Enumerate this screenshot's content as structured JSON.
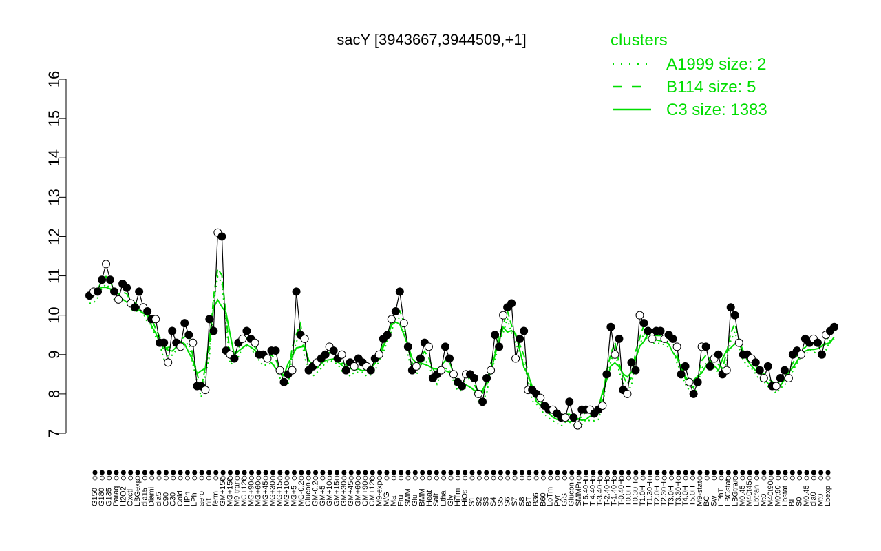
{
  "chart_data": {
    "type": "line",
    "title": "sacY [3943667,3944509,+1]",
    "xlabel": "",
    "ylabel": "",
    "ylim": [
      7,
      16
    ],
    "yticks": [
      7,
      8,
      9,
      10,
      11,
      12,
      13,
      14,
      15,
      16
    ],
    "grid": false,
    "colors": {
      "accent": "#00dd00",
      "axis": "#000000",
      "point_fill_open": "#ffffff",
      "point_fill_solid": "#000000"
    },
    "x_tick_labels": [
      "G150",
      "G180",
      "G135",
      "Paraq",
      "H2O2",
      "Oxctl",
      "LBGexp",
      "dia15",
      "Diami",
      "dia5",
      "C90",
      "C30",
      "Cold",
      "HPh",
      "LPh",
      "aero",
      "nit",
      "ferm",
      "GM+150",
      "MG+150",
      "M9-tran",
      "MG+120",
      "MG+90",
      "MG+60",
      "MG+45",
      "MG+30",
      "MG+15",
      "MG+10",
      "MG+5",
      "MG-0.2",
      "Glucon",
      "GM-0.2",
      "GM+5",
      "GM+10",
      "GM+15",
      "GM+30",
      "GM+45",
      "GM+60",
      "GM+90",
      "GM+120",
      "M9-exp",
      "M/G",
      "Mal",
      "Fru",
      "SMM",
      "Glu",
      "BMM",
      "Heat",
      "Salt",
      "Etha",
      "Gly",
      "HiTm",
      "HiOs",
      "S1",
      "S2",
      "S3",
      "S4",
      "S5",
      "S6",
      "S7",
      "S8",
      "BT",
      "B36",
      "B60",
      "LoTm",
      "Pyr",
      "G/S",
      "Glucon",
      "SMMPr",
      "T-5.40H",
      "T-4.40H",
      "T-3.40H",
      "T-2.40H",
      "T-1.40H",
      "T-0.40H",
      "T0.0H",
      "T0.30H",
      "T1.0H",
      "T1.30H",
      "T2.0H",
      "T2.30H",
      "T3.0H",
      "T3.30H",
      "T4.0H",
      "T5.0H",
      "M9-stat",
      "BC",
      "Sw",
      "LPhT",
      "LBGstat",
      "LBGtran",
      "M0t45",
      "M40t45",
      "Lbtran",
      "Mt0",
      "M40t90",
      "M0t90",
      "Lbstat",
      "BI",
      "S0",
      "M0t45",
      "dia0",
      "Mt0",
      "Lbexp"
    ],
    "series": [
      {
        "name": "A1999 size: 2",
        "style": "dotted"
      },
      {
        "name": "B114 size: 5",
        "style": "dashed"
      },
      {
        "name": "C3 size: 1383",
        "style": "solid"
      }
    ],
    "legend": {
      "title": "clusters",
      "position": "top-right"
    },
    "points": [
      [
        1,
        10.5
      ],
      [
        2,
        10.6
      ],
      [
        3,
        10.6
      ],
      [
        4,
        10.9
      ],
      [
        5,
        11.3
      ],
      [
        6,
        10.9
      ],
      [
        7,
        10.6
      ],
      [
        8,
        10.4
      ],
      [
        9,
        10.8
      ],
      [
        10,
        10.7
      ],
      [
        11,
        10.3
      ],
      [
        12,
        10.2
      ],
      [
        13,
        10.6
      ],
      [
        14,
        10.2
      ],
      [
        15,
        10.1
      ],
      [
        16,
        9.9
      ],
      [
        17,
        9.9
      ],
      [
        18,
        9.3
      ],
      [
        19,
        9.3
      ],
      [
        20,
        8.8
      ],
      [
        21,
        9.6
      ],
      [
        22,
        9.3
      ],
      [
        23,
        9.2
      ],
      [
        24,
        9.8
      ],
      [
        25,
        9.5
      ],
      [
        26,
        9.3
      ],
      [
        27,
        8.2
      ],
      [
        28,
        8.2
      ],
      [
        29,
        8.1
      ],
      [
        30,
        9.9
      ],
      [
        31,
        9.6
      ],
      [
        32,
        12.1
      ],
      [
        33,
        12.0
      ],
      [
        34,
        9.1
      ],
      [
        35,
        9.0
      ],
      [
        36,
        8.9
      ],
      [
        37,
        9.3
      ],
      [
        38,
        9.4
      ],
      [
        39,
        9.6
      ],
      [
        40,
        9.4
      ],
      [
        41,
        9.3
      ],
      [
        42,
        9.0
      ],
      [
        43,
        9.0
      ],
      [
        44,
        8.9
      ],
      [
        45,
        9.1
      ],
      [
        46,
        9.1
      ],
      [
        47,
        8.6
      ],
      [
        48,
        8.3
      ],
      [
        49,
        8.5
      ],
      [
        50,
        8.6
      ],
      [
        51,
        10.6
      ],
      [
        52,
        9.5
      ],
      [
        53,
        9.4
      ],
      [
        54,
        8.6
      ],
      [
        55,
        8.7
      ],
      [
        56,
        8.8
      ],
      [
        57,
        8.9
      ],
      [
        58,
        9.0
      ],
      [
        59,
        9.2
      ],
      [
        60,
        9.1
      ],
      [
        61,
        8.9
      ],
      [
        62,
        9.0
      ],
      [
        63,
        8.6
      ],
      [
        64,
        8.8
      ],
      [
        65,
        8.7
      ],
      [
        66,
        8.9
      ],
      [
        67,
        8.8
      ],
      [
        68,
        8.7
      ],
      [
        69,
        8.6
      ],
      [
        70,
        8.9
      ],
      [
        71,
        9.0
      ],
      [
        72,
        9.4
      ],
      [
        73,
        9.5
      ],
      [
        74,
        9.9
      ],
      [
        75,
        10.1
      ],
      [
        76,
        10.6
      ],
      [
        77,
        9.8
      ],
      [
        78,
        9.2
      ],
      [
        79,
        8.6
      ],
      [
        80,
        8.7
      ],
      [
        81,
        8.9
      ],
      [
        82,
        9.3
      ],
      [
        83,
        9.2
      ],
      [
        84,
        8.4
      ],
      [
        85,
        8.5
      ],
      [
        86,
        8.6
      ],
      [
        87,
        9.2
      ],
      [
        88,
        8.9
      ],
      [
        89,
        8.5
      ],
      [
        90,
        8.3
      ],
      [
        91,
        8.2
      ],
      [
        92,
        8.5
      ],
      [
        93,
        8.5
      ],
      [
        94,
        8.4
      ],
      [
        95,
        8.0
      ],
      [
        96,
        7.8
      ],
      [
        97,
        8.4
      ],
      [
        98,
        8.6
      ],
      [
        99,
        9.5
      ],
      [
        100,
        9.2
      ],
      [
        101,
        10.0
      ],
      [
        102,
        10.2
      ],
      [
        103,
        10.3
      ],
      [
        104,
        8.9
      ],
      [
        105,
        9.4
      ],
      [
        106,
        9.6
      ],
      [
        107,
        8.1
      ],
      [
        108,
        8.1
      ],
      [
        109,
        8.0
      ],
      [
        110,
        7.9
      ],
      [
        111,
        7.7
      ],
      [
        112,
        7.6
      ],
      [
        113,
        7.6
      ],
      [
        114,
        7.5
      ],
      [
        115,
        7.4
      ],
      [
        116,
        7.4
      ],
      [
        117,
        7.8
      ],
      [
        118,
        7.4
      ],
      [
        119,
        7.2
      ],
      [
        120,
        7.6
      ],
      [
        121,
        7.6
      ],
      [
        122,
        7.6
      ],
      [
        123,
        7.5
      ],
      [
        124,
        7.6
      ],
      [
        125,
        7.7
      ],
      [
        126,
        8.5
      ],
      [
        127,
        9.7
      ],
      [
        128,
        9.0
      ],
      [
        129,
        9.4
      ],
      [
        130,
        8.1
      ],
      [
        131,
        8.0
      ],
      [
        132,
        8.8
      ],
      [
        133,
        8.6
      ],
      [
        134,
        10.0
      ],
      [
        135,
        9.8
      ],
      [
        136,
        9.6
      ],
      [
        137,
        9.4
      ],
      [
        138,
        9.6
      ],
      [
        139,
        9.6
      ],
      [
        140,
        9.4
      ],
      [
        141,
        9.5
      ],
      [
        142,
        9.4
      ],
      [
        143,
        9.2
      ],
      [
        144,
        8.5
      ],
      [
        145,
        8.7
      ],
      [
        146,
        8.3
      ],
      [
        147,
        8.0
      ],
      [
        148,
        8.3
      ],
      [
        149,
        9.2
      ],
      [
        150,
        9.2
      ],
      [
        151,
        8.7
      ],
      [
        152,
        8.9
      ],
      [
        153,
        9.0
      ],
      [
        154,
        8.5
      ],
      [
        155,
        8.6
      ],
      [
        156,
        10.2
      ],
      [
        157,
        10.0
      ],
      [
        158,
        9.3
      ],
      [
        159,
        9.0
      ],
      [
        160,
        9.0
      ],
      [
        161,
        8.9
      ],
      [
        162,
        8.8
      ],
      [
        163,
        8.6
      ],
      [
        164,
        8.4
      ],
      [
        165,
        8.7
      ],
      [
        166,
        8.2
      ],
      [
        167,
        8.2
      ],
      [
        168,
        8.4
      ],
      [
        169,
        8.6
      ],
      [
        170,
        8.4
      ],
      [
        171,
        9.0
      ],
      [
        172,
        9.1
      ],
      [
        173,
        9.0
      ],
      [
        174,
        9.4
      ],
      [
        175,
        9.3
      ],
      [
        176,
        9.4
      ],
      [
        177,
        9.3
      ],
      [
        178,
        9.0
      ],
      [
        179,
        9.5
      ],
      [
        180,
        9.6
      ],
      [
        181,
        9.7
      ]
    ]
  }
}
